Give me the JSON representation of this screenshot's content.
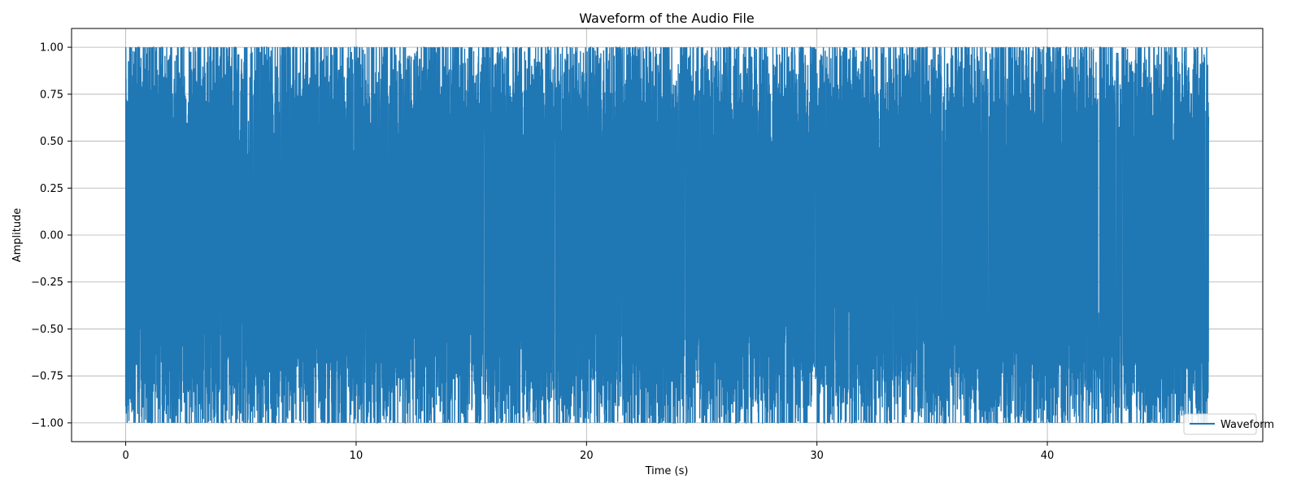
{
  "chart_data": {
    "type": "line",
    "title": "Waveform of the Audio File",
    "xlabel": "Time (s)",
    "ylabel": "Amplitude",
    "xlim": [
      -2.35,
      49.35
    ],
    "ylim": [
      -1.1,
      1.1
    ],
    "xticks": [
      0,
      10,
      20,
      30,
      40
    ],
    "xtick_labels": [
      "0",
      "10",
      "20",
      "30",
      "40"
    ],
    "yticks": [
      -1.0,
      -0.75,
      -0.5,
      -0.25,
      0.0,
      0.25,
      0.5,
      0.75,
      1.0
    ],
    "ytick_labels": [
      "−1.00",
      "−0.75",
      "−0.50",
      "−0.25",
      "0.00",
      "0.25",
      "0.50",
      "0.75",
      "1.00"
    ],
    "grid": true,
    "legend_position": "lower-right",
    "series": [
      {
        "name": "Waveform",
        "color": "#1f77b4",
        "duration": 47.0,
        "min_value": -1.0,
        "max_value": 1.0,
        "clipped": true
      }
    ]
  }
}
